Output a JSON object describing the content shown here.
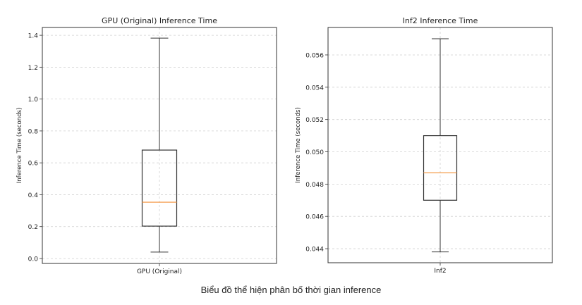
{
  "caption": "Biểu đồ thể hiện phân bố thời gian inference",
  "colors": {
    "median": "#f5a45a",
    "box": "#333333",
    "grid": "#d0d0d0"
  },
  "chart_data": [
    {
      "type": "box",
      "title": "GPU (Original) Inference Time",
      "ylabel": "Inference Time (seconds)",
      "categories": [
        "GPU (Original)"
      ],
      "ylim": [
        -0.031,
        1.449
      ],
      "yticks": [
        0.0,
        0.2,
        0.4,
        0.6,
        0.8,
        1.0,
        1.2,
        1.4
      ],
      "ytick_labels": [
        "0.0",
        "0.2",
        "0.4",
        "0.6",
        "0.8",
        "1.0",
        "1.2",
        "1.4"
      ],
      "grid": true,
      "box": {
        "whisker_low": 0.04,
        "q1": 0.203,
        "median": 0.353,
        "q3": 0.68,
        "whisker_high": 1.382
      }
    },
    {
      "type": "box",
      "title": "Inf2 Inference Time",
      "ylabel": "Inference Time (seconds)",
      "categories": [
        "Inf2"
      ],
      "ylim": [
        0.04313,
        0.0577
      ],
      "yticks": [
        0.044,
        0.046,
        0.048,
        0.05,
        0.052,
        0.054,
        0.056
      ],
      "ytick_labels": [
        "0.044",
        "0.046",
        "0.048",
        "0.050",
        "0.052",
        "0.054",
        "0.056"
      ],
      "grid": true,
      "box": {
        "whisker_low": 0.0438,
        "q1": 0.047,
        "median": 0.0487,
        "q3": 0.051,
        "whisker_high": 0.057
      }
    }
  ]
}
